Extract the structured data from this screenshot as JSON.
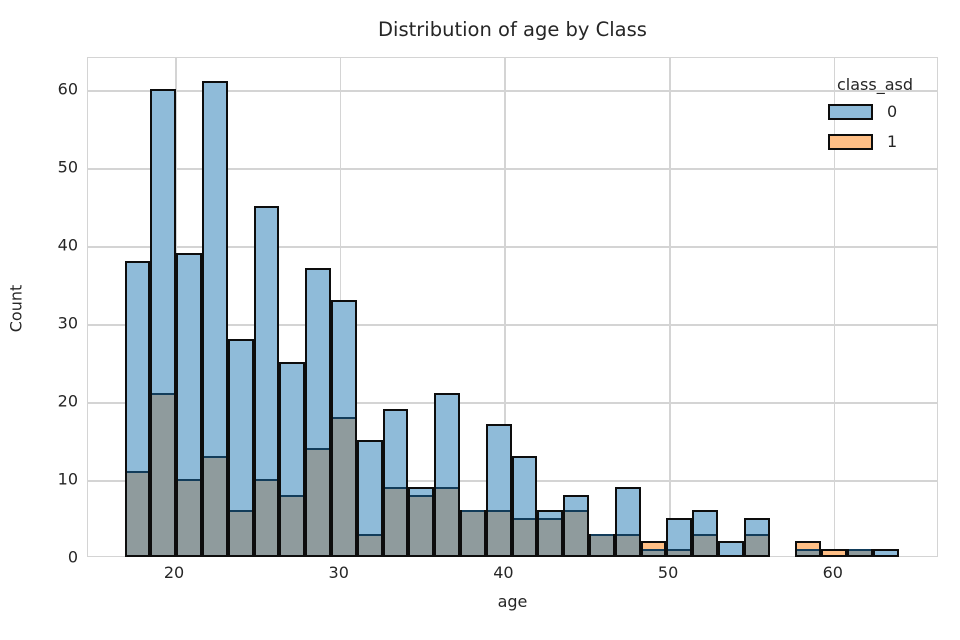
{
  "title": "Distribution of age by Class",
  "axes": {
    "xlabel": "age",
    "ylabel": "Count",
    "x_ticks": [
      20,
      30,
      40,
      50,
      60
    ],
    "y_ticks": [
      0,
      10,
      20,
      30,
      40,
      50,
      60
    ]
  },
  "legend": {
    "title": "class_asd",
    "items": [
      {
        "label": "0",
        "color": "#8fbbd9"
      },
      {
        "label": "1",
        "color": "#ffbf86"
      }
    ]
  },
  "colors": {
    "class0_fill": "#8fbbd9",
    "class1_fill": "#ffbf86",
    "overlap_fill": "#8f9b9d",
    "bar_edge": "#0d0d0d",
    "overlap_edge": "#123c5a",
    "grid": "#d4d4d4",
    "text": "#262626",
    "background": "#ffffff"
  },
  "chart_data": {
    "type": "bar",
    "subtype": "overlaid-histogram",
    "title": "Distribution of age by Class",
    "xlabel": "age",
    "ylabel": "Count",
    "bin_start": 17,
    "bin_end": 64,
    "bin_count": 30,
    "bin_width": 1.567,
    "bin_left_edges": [
      17.0,
      18.57,
      20.13,
      21.7,
      23.27,
      24.83,
      26.4,
      27.97,
      29.53,
      31.1,
      32.67,
      34.23,
      35.8,
      37.37,
      38.93,
      40.5,
      42.07,
      43.63,
      45.2,
      46.77,
      48.33,
      49.9,
      51.47,
      53.03,
      54.6,
      56.17,
      57.73,
      59.3,
      60.87,
      62.43
    ],
    "series": [
      {
        "name": "0",
        "color": "#8fbbd9",
        "values": [
          38,
          60,
          39,
          61,
          28,
          45,
          25,
          37,
          33,
          15,
          19,
          9,
          21,
          6,
          17,
          13,
          6,
          8,
          3,
          9,
          1,
          5,
          6,
          2,
          5,
          0,
          1,
          0,
          1,
          1
        ]
      },
      {
        "name": "1",
        "color": "#ffbf86",
        "values": [
          11,
          21,
          10,
          13,
          6,
          10,
          8,
          14,
          18,
          3,
          9,
          8,
          9,
          6,
          6,
          5,
          5,
          6,
          3,
          3,
          2,
          1,
          3,
          0,
          3,
          0,
          2,
          1,
          1,
          0
        ]
      }
    ],
    "xlim": [
      14.7,
      66.4
    ],
    "ylim": [
      0,
      64
    ],
    "grid": true,
    "legend_title": "class_asd",
    "legend_position": "upper right"
  }
}
